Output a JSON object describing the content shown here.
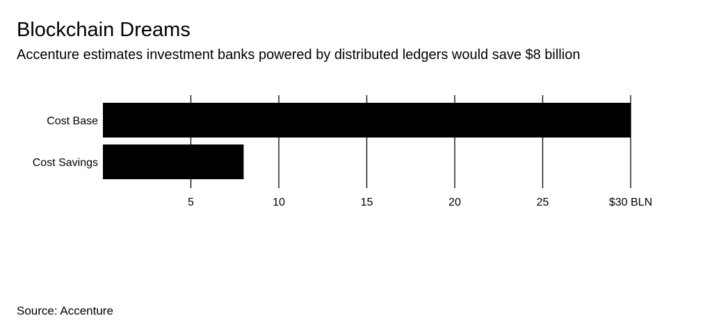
{
  "title": "Blockchain Dreams",
  "subtitle": "Accenture estimates investment banks powered by distributed ledgers would save $8 billion",
  "source": "Source: Accenture",
  "colors": {
    "bar": "#000000",
    "grid": "#000000"
  },
  "chart_data": {
    "type": "bar",
    "orientation": "horizontal",
    "title": "Blockchain Dreams",
    "categories": [
      "Cost Base",
      "Cost Savings"
    ],
    "values": [
      30,
      8
    ],
    "xlim": [
      0,
      30
    ],
    "ticks": [
      5,
      10,
      15,
      20,
      25,
      30
    ],
    "tick_labels": [
      "5",
      "10",
      "15",
      "20",
      "25",
      "$30 BLN"
    ],
    "xlabel": "",
    "ylabel": "",
    "grid": true
  }
}
